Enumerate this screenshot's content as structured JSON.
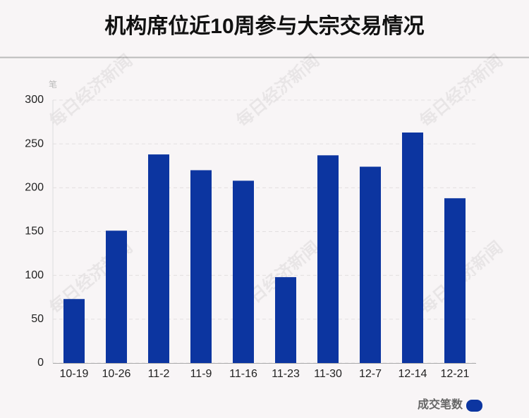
{
  "chart_data": {
    "type": "bar",
    "title": "机构席位近10周参与大宗交易情况",
    "y_unit": "笔",
    "watermark": "每日经济新闻",
    "categories": [
      "10-19",
      "10-26",
      "11-2",
      "11-9",
      "11-16",
      "11-23",
      "11-30",
      "12-7",
      "12-14",
      "12-21"
    ],
    "series": [
      {
        "name": "成交笔数",
        "color": "#0c35a0",
        "values": [
          73,
          151,
          238,
          220,
          208,
          98,
          237,
          224,
          263,
          188
        ]
      }
    ],
    "ylim": [
      0,
      300
    ],
    "yticks": [
      0,
      50,
      100,
      150,
      200,
      250,
      300
    ],
    "grid": true
  }
}
